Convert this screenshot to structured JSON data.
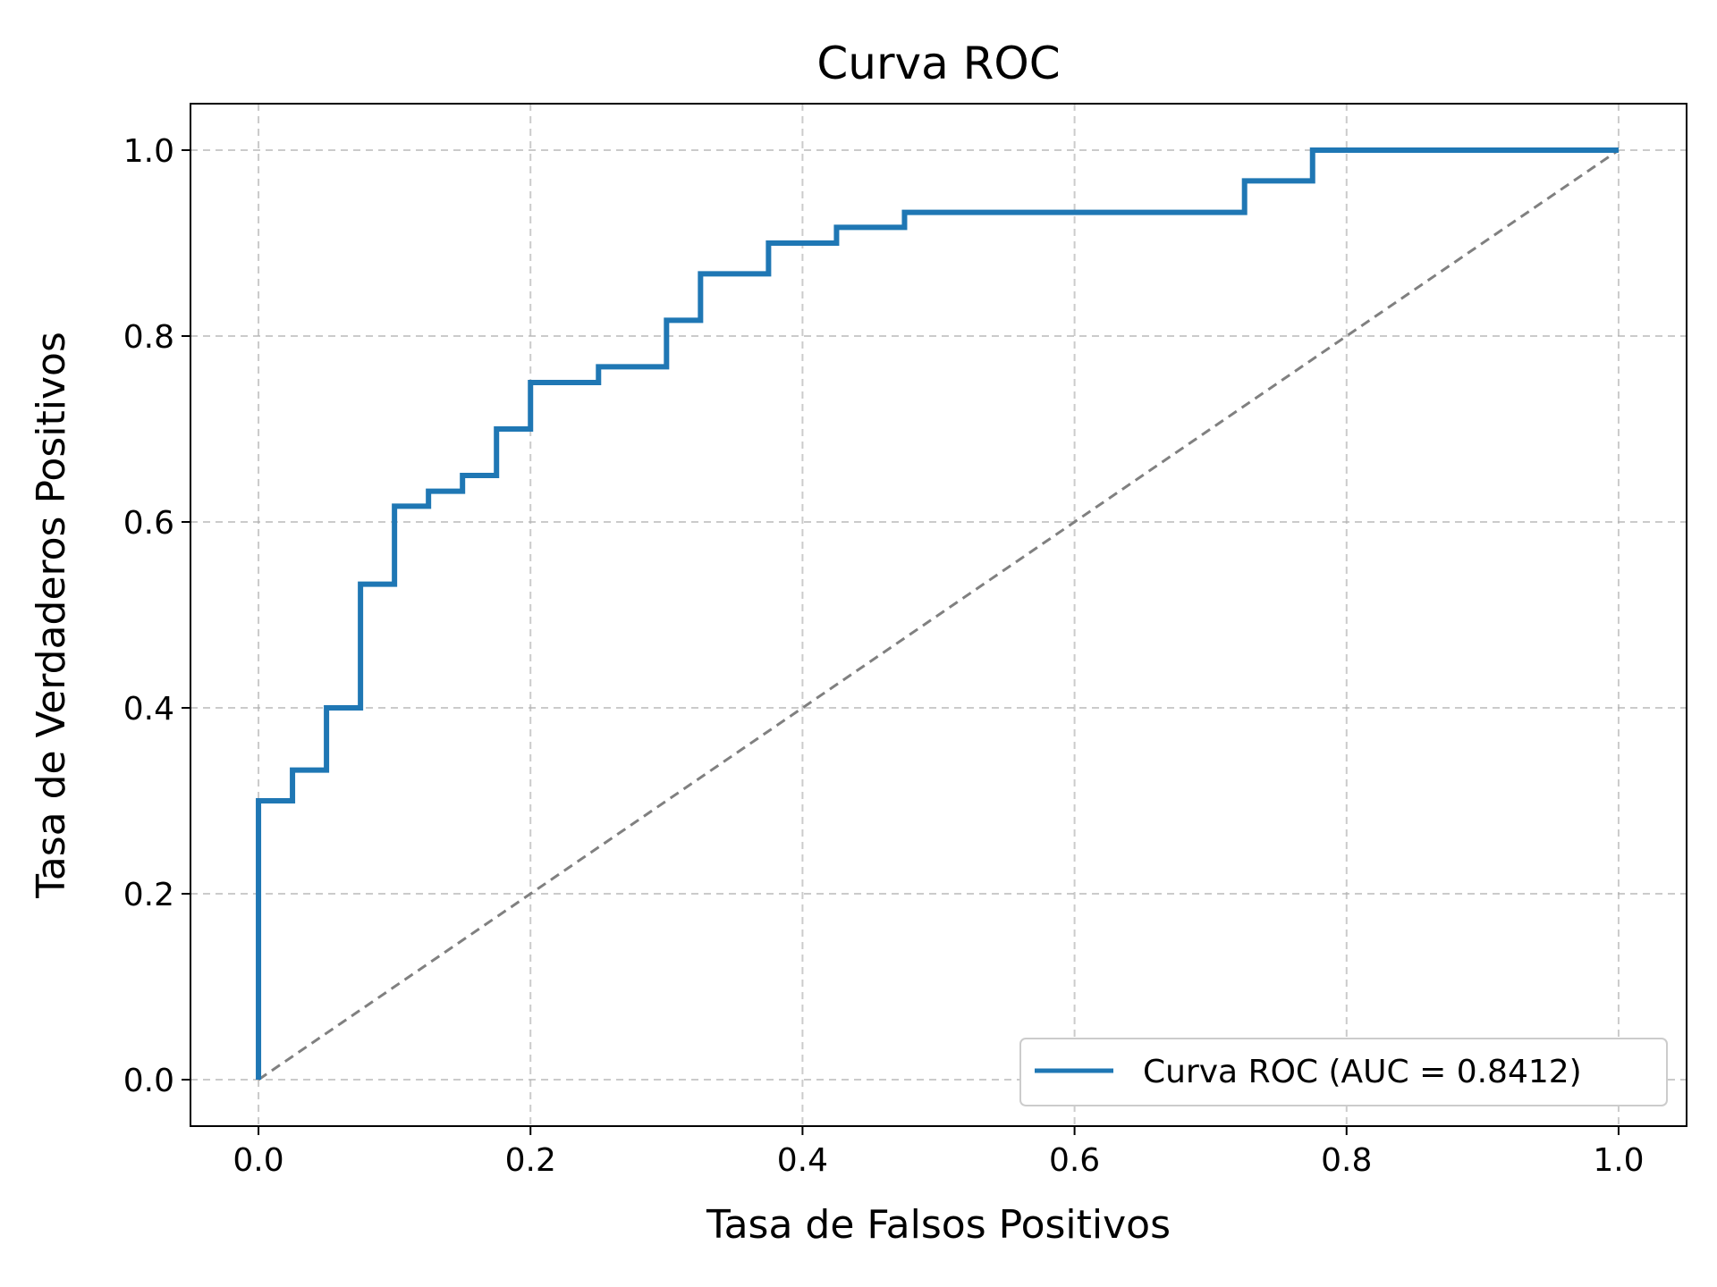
{
  "chart_data": {
    "type": "line",
    "title": "Curva ROC",
    "xlabel": "Tasa de Falsos Positivos",
    "ylabel": "Tasa de Verdaderos Positivos",
    "xlim": [
      -0.05,
      1.05
    ],
    "ylim": [
      -0.05,
      1.05
    ],
    "grid": true,
    "grid_style": "dashed",
    "legend_position": "lower-right",
    "x_ticks": [
      "0.0",
      "0.2",
      "0.4",
      "0.6",
      "0.8",
      "1.0"
    ],
    "y_ticks": [
      "0.0",
      "0.2",
      "0.4",
      "0.6",
      "0.8",
      "1.0"
    ],
    "series": [
      {
        "name": "Curva ROC (AUC = 0.8412)",
        "color": "#1f77b4",
        "style": "step",
        "x": [
          0.0,
          0.0,
          0.025,
          0.025,
          0.05,
          0.05,
          0.075,
          0.075,
          0.1,
          0.1,
          0.125,
          0.125,
          0.15,
          0.15,
          0.175,
          0.175,
          0.2,
          0.2,
          0.25,
          0.25,
          0.3,
          0.3,
          0.325,
          0.325,
          0.375,
          0.375,
          0.425,
          0.425,
          0.475,
          0.475,
          0.725,
          0.725,
          0.775,
          0.775,
          1.0
        ],
        "y": [
          0.0,
          0.3,
          0.3,
          0.333,
          0.333,
          0.4,
          0.4,
          0.533,
          0.533,
          0.617,
          0.617,
          0.633,
          0.633,
          0.65,
          0.65,
          0.7,
          0.7,
          0.75,
          0.75,
          0.767,
          0.767,
          0.817,
          0.817,
          0.867,
          0.867,
          0.9,
          0.9,
          0.917,
          0.917,
          0.933,
          0.933,
          0.967,
          0.967,
          1.0,
          1.0
        ]
      },
      {
        "color": "#808080",
        "style": "dashed",
        "x": [
          0.0,
          1.0
        ],
        "y": [
          0.0,
          1.0
        ]
      }
    ]
  }
}
